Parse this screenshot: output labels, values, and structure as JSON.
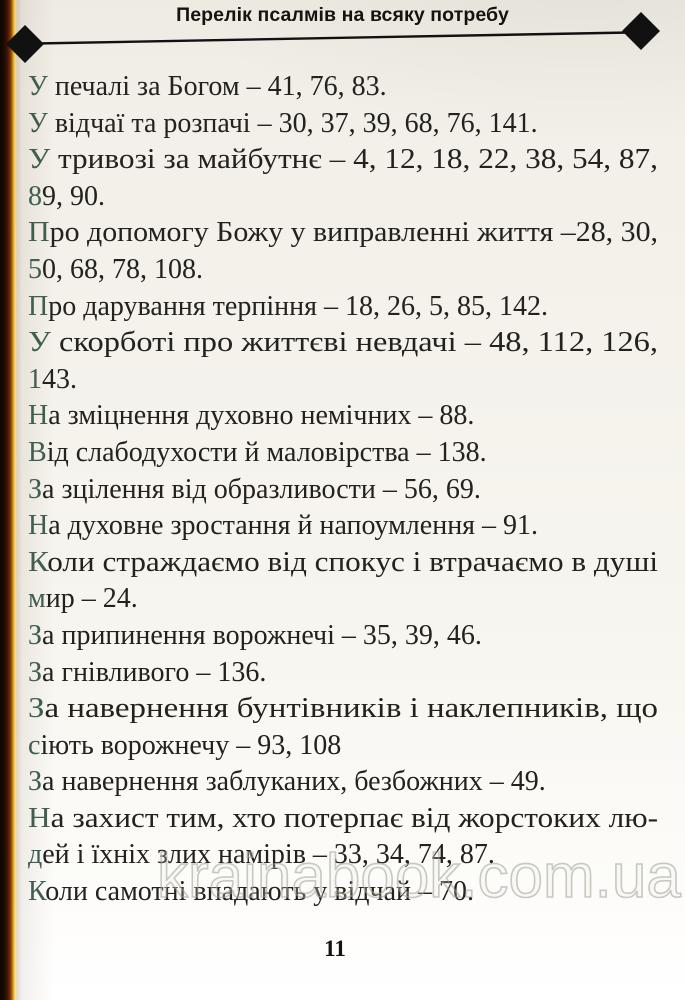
{
  "header": {
    "title": "Перелік псалмів на всяку потребу"
  },
  "lines": [
    {
      "text": "У печалі за Богом – 41, 76, 83.",
      "fill": false
    },
    {
      "text": "У відчаї та розпачі – 30, 37, 39, 68, 76, 141.",
      "fill": false
    },
    {
      "text": "У тривозі за майбутнє – 4, 12, 18, 22, 38, 54, 87,",
      "fill": true
    },
    {
      "text": "89, 90.",
      "fill": false
    },
    {
      "text": "Про допомогу Божу у виправленні життя –28, 30,",
      "fill": true
    },
    {
      "text": "50, 68, 78, 108.",
      "fill": false
    },
    {
      "text": "Про дарування терпіння – 18, 26, 5, 85, 142.",
      "fill": false
    },
    {
      "text": "У скорботі про життєві невдачі – 48, 112, 126,",
      "fill": true
    },
    {
      "text": "143.",
      "fill": false
    },
    {
      "text": "На зміцнення духовно немічних – 88.",
      "fill": false
    },
    {
      "text": "Від слабодухости й маловірства – 138.",
      "fill": false
    },
    {
      "text": "За зцілення від образливости – 56, 69.",
      "fill": false
    },
    {
      "text": "На духовне зростання й напоумлення – 91.",
      "fill": false
    },
    {
      "text": "Коли страждаємо від спокус і втрачаємо в душі",
      "fill": true
    },
    {
      "text": "мир – 24.",
      "fill": false
    },
    {
      "text": "За припинення ворожнечі – 35, 39, 46.",
      "fill": false
    },
    {
      "text": "За гнівливого – 136.",
      "fill": false
    },
    {
      "text": "За навернення бунтівників і наклепників, що",
      "fill": true
    },
    {
      "text": "сіють ворожнечу – 93, 108",
      "fill": false
    },
    {
      "text": "За навернення заблуканих, безбожних – 49.",
      "fill": false
    },
    {
      "text": "На захист тим, хто потерпає від жорстоких лю-",
      "fill": true
    },
    {
      "text": "дей і їхніх злих намірів – 33, 34, 74, 87.",
      "fill": false
    },
    {
      "text": "Коли самотні впадають у відчай – 70.",
      "fill": false
    }
  ],
  "footer": {
    "page_number": "11"
  },
  "watermark": {
    "text": "krainabook.com.ua"
  },
  "colors": {
    "ink": "#23221d",
    "tint": "#3f5e4e",
    "page_bg": "#f4f2eb",
    "spine_dark": "#1b0a03",
    "spine_gold": "#eec23e",
    "watermark_outline": "#9e9e96",
    "ornament": "#111111"
  }
}
